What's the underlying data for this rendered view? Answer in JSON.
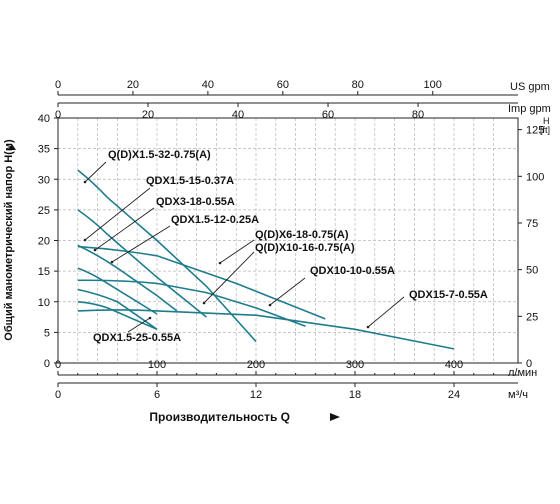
{
  "chart_data": {
    "type": "line",
    "x_axes": {
      "us_gpm": {
        "label": "US gpm",
        "ticks": [
          0,
          20,
          40,
          60,
          80,
          100
        ]
      },
      "imp_gpm": {
        "label": "Imp gpm",
        "ticks": [
          0,
          20,
          40,
          60,
          80
        ]
      },
      "l_min": {
        "label": "л/мин",
        "ticks": [
          0,
          100,
          200,
          300,
          400
        ]
      },
      "m3_h": {
        "label": "м³/ч",
        "ticks": [
          0,
          6,
          12,
          18,
          24
        ]
      }
    },
    "y_axes": {
      "head_m": {
        "title": "Общий манометрический напор H(м)",
        "ticks": [
          0,
          5,
          10,
          15,
          20,
          25,
          30,
          35,
          40
        ],
        "ylim": [
          0,
          40
        ]
      },
      "head_ft": {
        "unit_h": "H",
        "unit_ft": "[ft]",
        "ticks": [
          0,
          25,
          50,
          75,
          100,
          125
        ]
      }
    },
    "xlabel": "Производительность Q",
    "series": [
      {
        "name": "Q(D)X1.5-32-0.75(A)",
        "x": [
          20,
          50,
          100,
          150,
          200
        ],
        "y": [
          31.5,
          27,
          20,
          12.5,
          3.5
        ]
      },
      {
        "name": "QDX1.5-15-0.37A",
        "x": [
          20,
          50,
          100
        ],
        "y": [
          15.5,
          13,
          8
        ]
      },
      {
        "name": "QDX3-18-0.55A",
        "x": [
          20,
          60,
          100,
          120
        ],
        "y": [
          19.2,
          15.5,
          11,
          8.5
        ]
      },
      {
        "name": "QDX1.5-12-0.25A",
        "x": [
          20,
          60,
          100
        ],
        "y": [
          12,
          10,
          5.5
        ]
      },
      {
        "name": "Q(D)X6-18-0.75(A)",
        "x": [
          20,
          100,
          180,
          270
        ],
        "y": [
          19,
          17.5,
          13,
          7.2
        ]
      },
      {
        "name": "Q(D)X10-16-0.75(A)",
        "x": [
          20,
          50,
          100,
          150
        ],
        "y": [
          25,
          21,
          14,
          7.5
        ]
      },
      {
        "name": "QDX10-10-0.55A",
        "x": [
          20,
          100,
          150,
          200,
          250
        ],
        "y": [
          13.5,
          13,
          11.5,
          9,
          6
        ]
      },
      {
        "name": "QDX15-7-0.55A",
        "x": [
          20,
          100,
          200,
          300,
          400
        ],
        "y": [
          8.5,
          8.5,
          7.8,
          5.5,
          2.3
        ]
      },
      {
        "name": "QDX1.5-25-0.55A",
        "x": [
          20,
          50,
          100
        ],
        "y": [
          10,
          9,
          5.5
        ]
      }
    ]
  }
}
